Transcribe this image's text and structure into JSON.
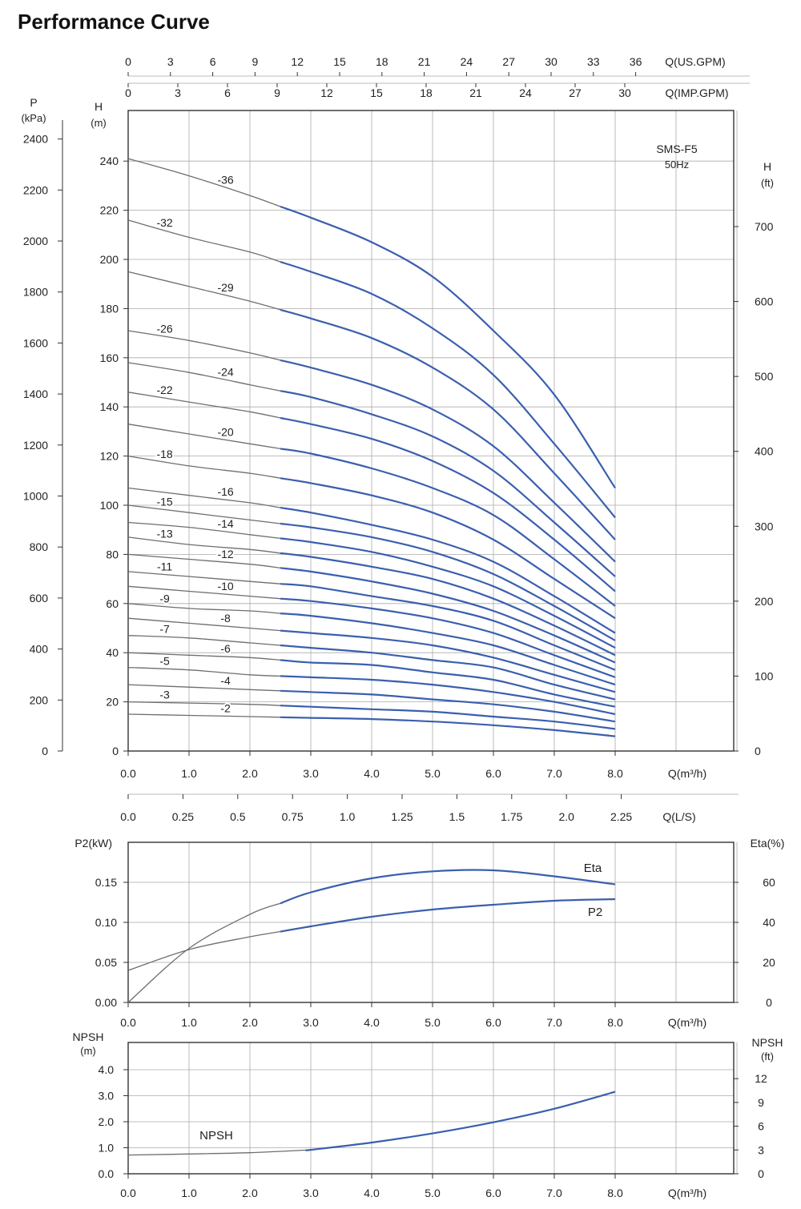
{
  "title": "Performance Curve",
  "colors": {
    "curve_blue": "#3a5fae",
    "curve_gray": "#6e6e6e",
    "grid": "#aaaaaa",
    "frame": "#333333"
  },
  "axes": {
    "us_gpm": {
      "label": "Q(US.GPM)",
      "ticks": [
        "0",
        "3",
        "6",
        "9",
        "12",
        "15",
        "18",
        "21",
        "24",
        "27",
        "30",
        "33",
        "36"
      ]
    },
    "imp_gpm": {
      "label": "Q(IMP.GPM)",
      "ticks": [
        "0",
        "3",
        "6",
        "9",
        "12",
        "15",
        "18",
        "21",
        "24",
        "27",
        "30"
      ]
    },
    "pressure": {
      "label_top": "P",
      "label_bottom": "(kPa)",
      "ticks": [
        "0",
        "200",
        "400",
        "600",
        "800",
        "1000",
        "1200",
        "1400",
        "1600",
        "1800",
        "2000",
        "2200",
        "2400"
      ]
    },
    "head_m": {
      "label_top": "H",
      "label_bottom": "(m)",
      "ticks": [
        "0",
        "20",
        "40",
        "60",
        "80",
        "100",
        "120",
        "140",
        "160",
        "180",
        "200",
        "220",
        "240"
      ]
    },
    "head_ft": {
      "label_top": "H",
      "label_bottom": "(ft)",
      "ticks": [
        "0",
        "100",
        "200",
        "300",
        "400",
        "500",
        "600",
        "700"
      ]
    },
    "q_m3h": {
      "label": "Q(m³/h)",
      "ticks": [
        "0.0",
        "1.0",
        "2.0",
        "3.0",
        "4.0",
        "5.0",
        "6.0",
        "7.0",
        "8.0"
      ]
    },
    "q_ls": {
      "label": "Q(L/S)",
      "ticks": [
        "0.0",
        "0.25",
        "0.5",
        "0.75",
        "1.0",
        "1.25",
        "1.5",
        "1.75",
        "2.0",
        "2.25"
      ]
    },
    "p2": {
      "label": "P2(kW)",
      "ticks": [
        "0.00",
        "0.05",
        "0.10",
        "0.15"
      ]
    },
    "eta": {
      "label": "Eta(%)",
      "ticks": [
        "0",
        "20",
        "40",
        "60"
      ]
    },
    "npsh_m": {
      "label_top": "NPSH",
      "label_bottom": "(m)",
      "ticks": [
        "0.0",
        "1.0",
        "2.0",
        "3.0",
        "4.0"
      ]
    },
    "npsh_ft": {
      "label_top": "NPSH",
      "label_bottom": "(ft)",
      "ticks": [
        "0",
        "3",
        "6",
        "9",
        "12"
      ]
    }
  },
  "model": {
    "line1": "SMS-F5",
    "line2": "50Hz"
  },
  "chart_data": [
    {
      "type": "line",
      "title": "",
      "xlabel": "Q(m³/h)",
      "ylabel": "H (m)",
      "xlim": [
        0,
        10
      ],
      "ylim": [
        0,
        250
      ],
      "grid": true,
      "q": [
        0,
        1,
        2,
        3,
        4,
        5,
        6,
        7,
        8
      ],
      "series": [
        {
          "name": "-36",
          "values": [
            241,
            234,
            226,
            217,
            207,
            193,
            171,
            145,
            107
          ]
        },
        {
          "name": "-32",
          "values": [
            216,
            209,
            203,
            195,
            186,
            172,
            153,
            125,
            95
          ]
        },
        {
          "name": "-29",
          "values": [
            195,
            189,
            183,
            176,
            168,
            156,
            139,
            113,
            86
          ]
        },
        {
          "name": "-26",
          "values": [
            171,
            167,
            162,
            156,
            149,
            139,
            124,
            101,
            77
          ]
        },
        {
          "name": "-24",
          "values": [
            158,
            154,
            149,
            144,
            137,
            128,
            114,
            93,
            71
          ]
        },
        {
          "name": "-22",
          "values": [
            146,
            142,
            138,
            133,
            127,
            118,
            105,
            86,
            65
          ]
        },
        {
          "name": "-20",
          "values": [
            133,
            129,
            125,
            121,
            115,
            107,
            96,
            78,
            59
          ]
        },
        {
          "name": "-18",
          "values": [
            120,
            116,
            113,
            109,
            104,
            97,
            86,
            70,
            54
          ]
        },
        {
          "name": "-16",
          "values": [
            107,
            104,
            101,
            97,
            92,
            86,
            77,
            63,
            48
          ]
        },
        {
          "name": "-15",
          "values": [
            100,
            97,
            94,
            91,
            87,
            81,
            72,
            59,
            45
          ]
        },
        {
          "name": "-14",
          "values": [
            93,
            91,
            88,
            85,
            81,
            75,
            67,
            55,
            42
          ]
        },
        {
          "name": "-13",
          "values": [
            87,
            84,
            82,
            79,
            75,
            70,
            62,
            51,
            39
          ]
        },
        {
          "name": "-12",
          "values": [
            80,
            78,
            76,
            73,
            69,
            64,
            57,
            47,
            36
          ]
        },
        {
          "name": "-11",
          "values": [
            73,
            71,
            69,
            67,
            63,
            59,
            53,
            43,
            33
          ]
        },
        {
          "name": "-10",
          "values": [
            67,
            65,
            63,
            61,
            58,
            54,
            48,
            39,
            30
          ]
        },
        {
          "name": "-9",
          "values": [
            60,
            58,
            57,
            55,
            52,
            48,
            43,
            35,
            27
          ]
        },
        {
          "name": "-8",
          "values": [
            54,
            52,
            50,
            48,
            46,
            43,
            38,
            31,
            24
          ]
        },
        {
          "name": "-7",
          "values": [
            47,
            46,
            44,
            42,
            40,
            37,
            34,
            27,
            21
          ]
        },
        {
          "name": "-6",
          "values": [
            40,
            39,
            38,
            36,
            35,
            32,
            29,
            23,
            18
          ]
        },
        {
          "name": "-5",
          "values": [
            34,
            33,
            31,
            30,
            29,
            27,
            24,
            20,
            15
          ]
        },
        {
          "name": "-4",
          "values": [
            27,
            26,
            25,
            24,
            23,
            21,
            19,
            16,
            12
          ]
        },
        {
          "name": "-3",
          "values": [
            20,
            19.5,
            19,
            18,
            17,
            16,
            14,
            12,
            9
          ]
        },
        {
          "name": "-2",
          "values": [
            15,
            14.5,
            14,
            13.5,
            13,
            12,
            10.5,
            8.5,
            6
          ]
        }
      ]
    },
    {
      "type": "line",
      "title": "",
      "xlabel": "Q(m³/h)",
      "ylabel": "P2(kW)",
      "xlim": [
        0,
        10
      ],
      "ylim": [
        0,
        0.2
      ],
      "grid": true,
      "series": [
        {
          "name": "Eta",
          "axis": "Eta(%)",
          "x": [
            0,
            1,
            2,
            3,
            4,
            5,
            6,
            7,
            8
          ],
          "values": [
            0,
            27,
            44,
            55,
            62,
            65.5,
            66,
            63,
            59
          ]
        },
        {
          "name": "P2",
          "axis": "P2(kW)",
          "x": [
            0,
            1,
            2,
            3,
            4,
            5,
            6,
            7,
            8
          ],
          "values": [
            0.04,
            0.066,
            0.082,
            0.095,
            0.107,
            0.116,
            0.122,
            0.127,
            0.129
          ]
        }
      ]
    },
    {
      "type": "line",
      "title": "",
      "xlabel": "Q(m³/h)",
      "ylabel": "NPSH (m)",
      "xlim": [
        0,
        10
      ],
      "ylim": [
        0,
        5
      ],
      "grid": true,
      "series": [
        {
          "name": "NPSH",
          "x": [
            0,
            1,
            2,
            3,
            4,
            5,
            6,
            7,
            8
          ],
          "values": [
            0.72,
            0.76,
            0.81,
            0.92,
            1.2,
            1.55,
            1.98,
            2.5,
            3.15
          ]
        }
      ]
    }
  ]
}
